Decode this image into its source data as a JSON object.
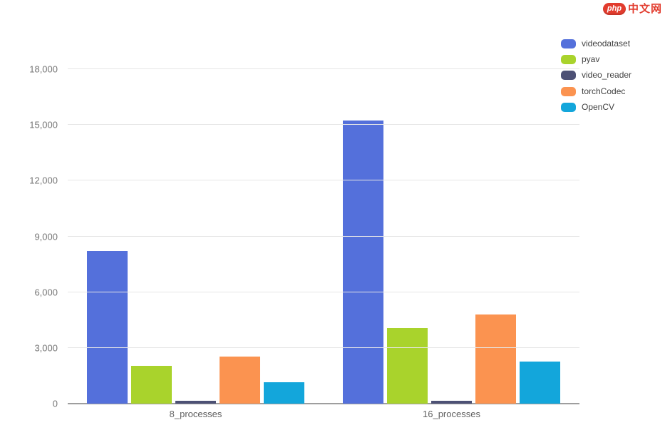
{
  "logo": {
    "php_text": "php",
    "site_text": "中文网"
  },
  "chart_data": {
    "type": "bar",
    "categories": [
      "8_processes",
      "16_processes"
    ],
    "series": [
      {
        "name": "videodataset",
        "color": "#5470db",
        "values": [
          8200,
          15250
        ]
      },
      {
        "name": "pyav",
        "color": "#a9d32c",
        "values": [
          2050,
          4050
        ]
      },
      {
        "name": "video_reader",
        "color": "#4d5175",
        "values": [
          150,
          150
        ]
      },
      {
        "name": "torchCodec",
        "color": "#fb9350",
        "values": [
          2550,
          4800
        ]
      },
      {
        "name": "OpenCV",
        "color": "#13a6db",
        "values": [
          1150,
          2250
        ]
      }
    ],
    "title": "",
    "xlabel": "",
    "ylabel": "",
    "ylim": [
      0,
      18000
    ],
    "ytick_interval": 3000,
    "ytick_labels": [
      "0",
      "3,000",
      "6,000",
      "9,000",
      "12,000",
      "15,000",
      "18,000"
    ],
    "grid": true,
    "legend_position": "top-right",
    "colors": {
      "gridline": "#e6e6e6",
      "axis_line": "#9e9e9e",
      "tick_text": "#757575",
      "legend_text": "#424242",
      "logo_red": "#e23c2e"
    }
  }
}
